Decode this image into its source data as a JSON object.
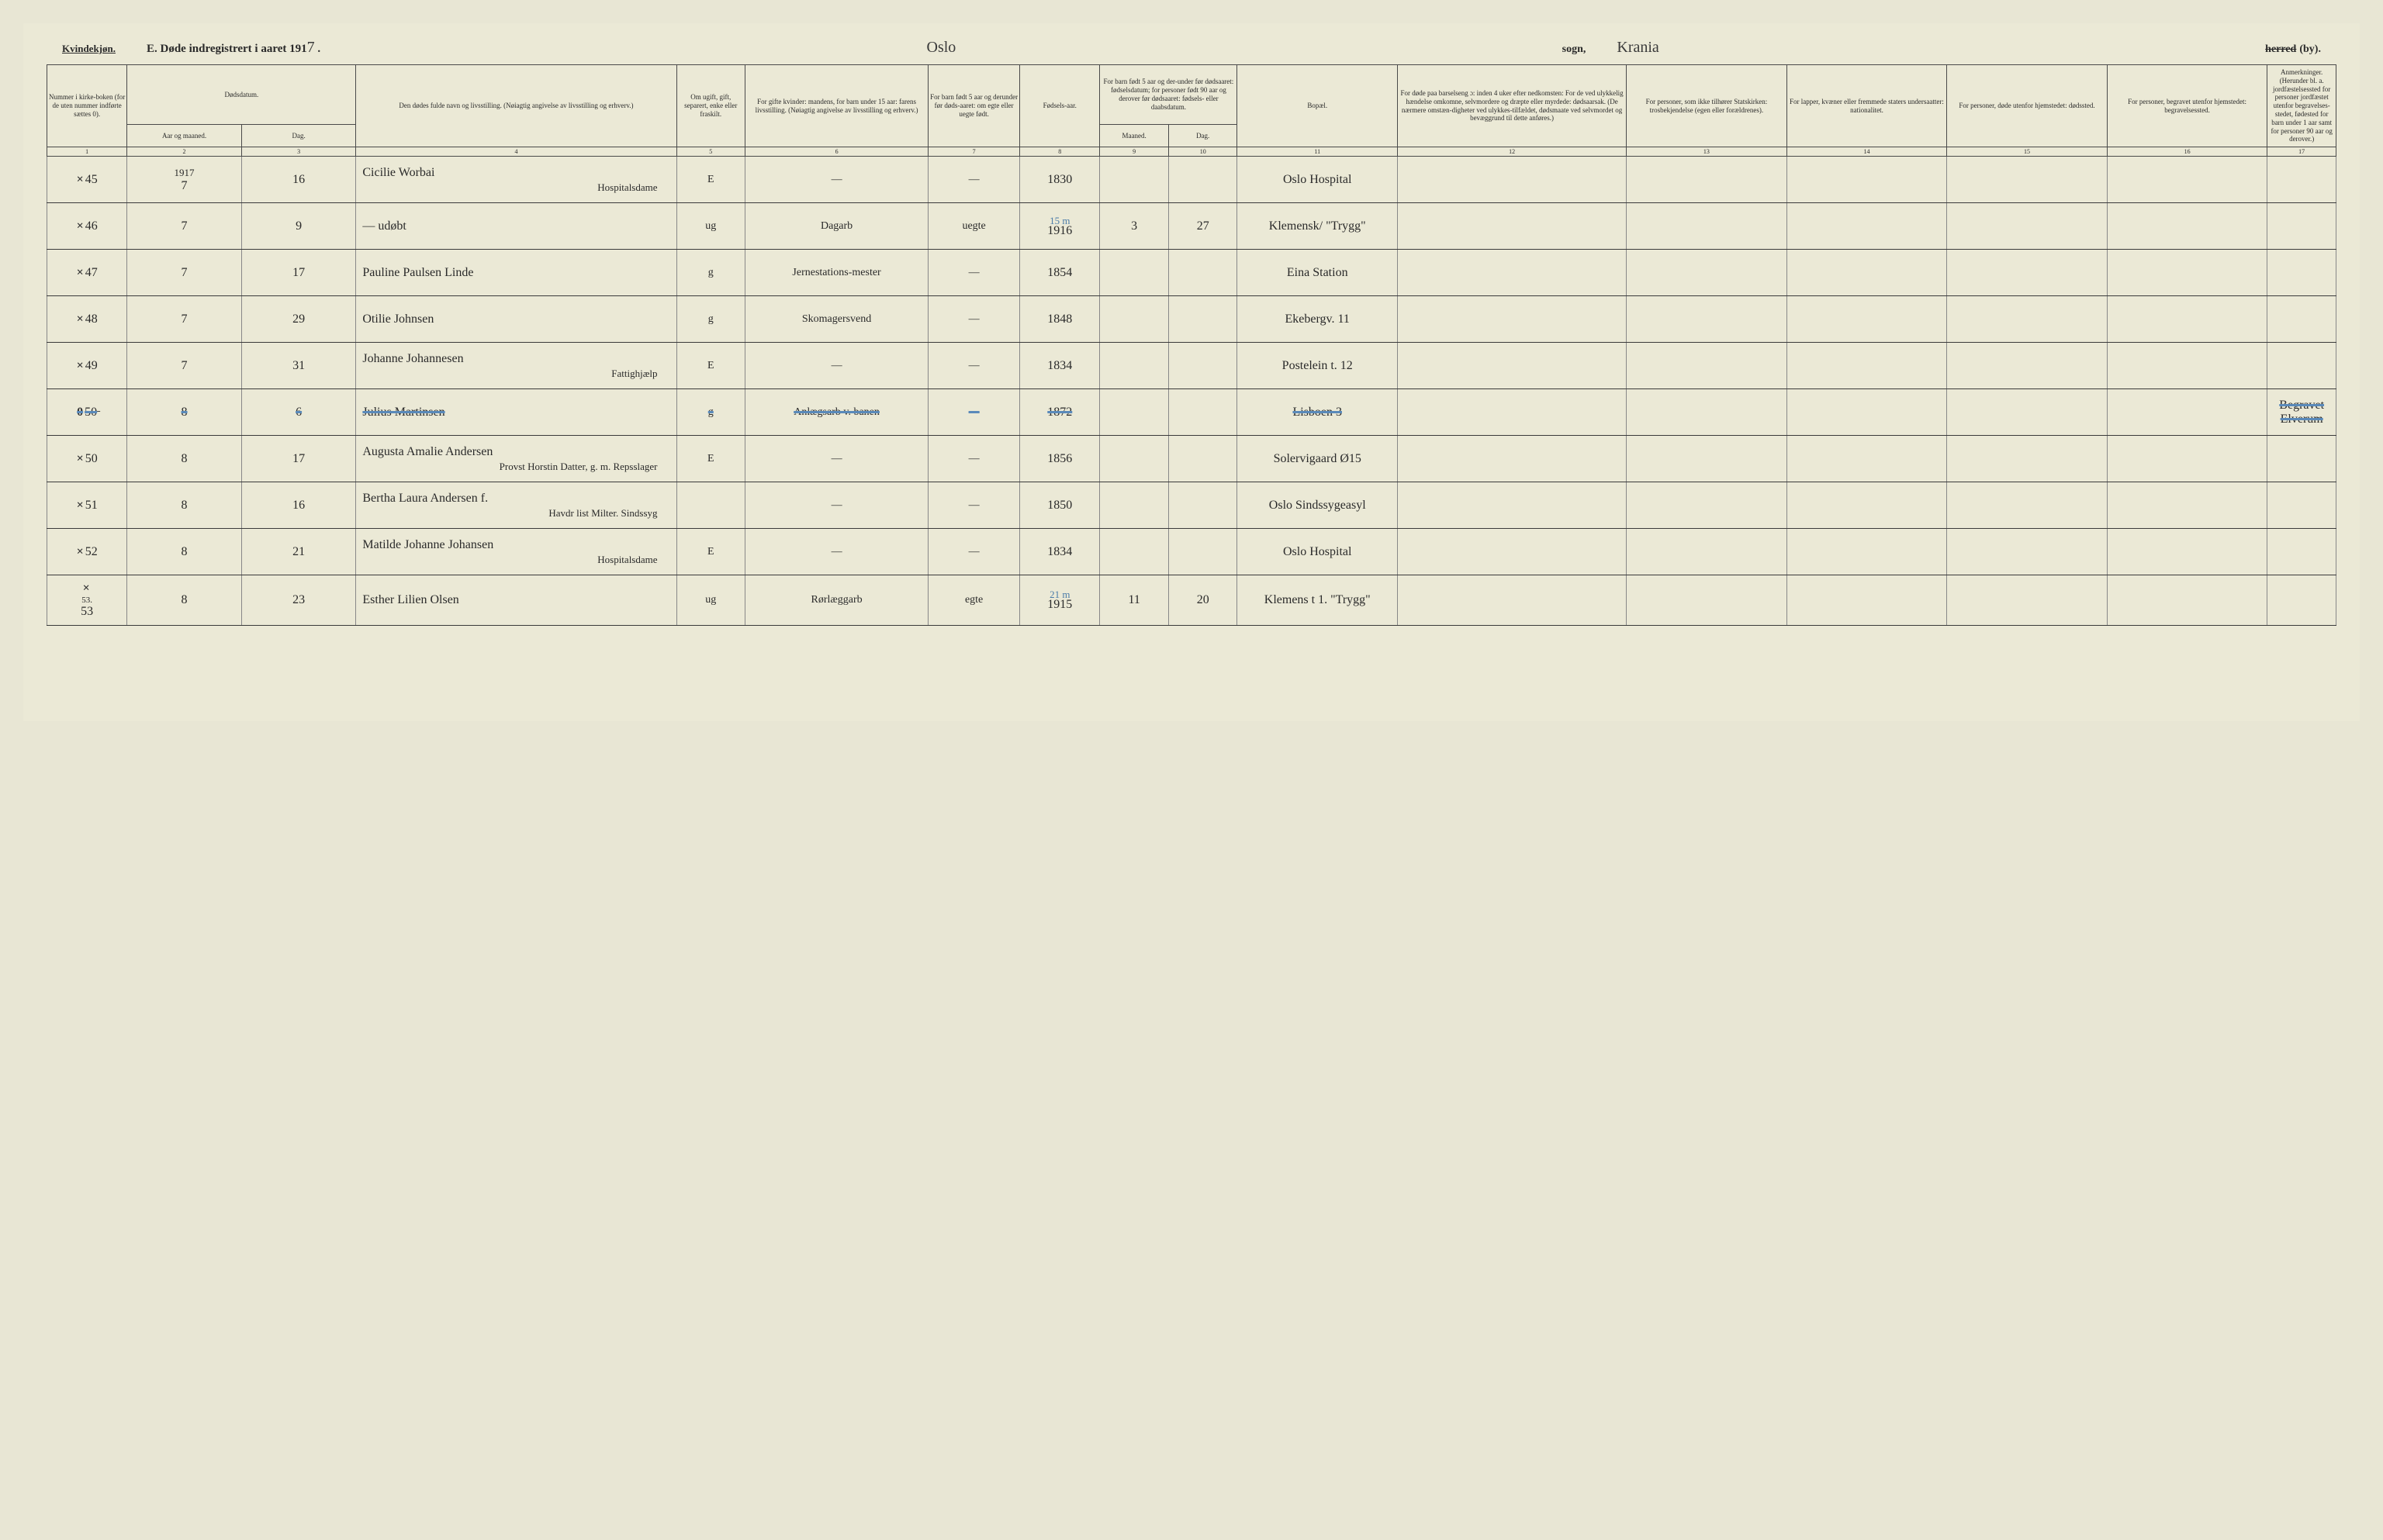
{
  "header": {
    "gender_label": "Kvindekjøn.",
    "title": "E.  Døde indregistrert i aaret 191",
    "year_suffix": "7",
    "parish": "Oslo",
    "sogn_label": "sogn,",
    "district": "Krania",
    "herred_label_struck": "herred",
    "herred_label_by": "(by)."
  },
  "column_headers": {
    "c1": "Nummer i kirke-boken (for de uten nummer indførte sættes 0).",
    "c2_top": "Dødsdatum.",
    "c2a": "Aar og maaned.",
    "c2b": "Dag.",
    "c4": "Den dødes fulde navn og livsstilling. (Nøiagtig angivelse av livsstilling og erhverv.)",
    "c5": "Om ugift, gift, separert, enke eller fraskilt.",
    "c6": "For gifte kvinder: mandens, for barn under 15 aar: farens livsstilling. (Nøiagtig angivelse av livsstilling og erhverv.)",
    "c7": "For barn født 5 aar og derunder før døds-aaret: om egte eller uegte født.",
    "c8": "Fødsels-aar.",
    "c9_top": "For barn født 5 aar og der-under før dødsaaret: fødselsdatum; for personer født 90 aar og derover før dødsaaret: fødsels- eller daabsdatum.",
    "c9a": "Maaned.",
    "c9b": "Dag.",
    "c11": "Bopæl.",
    "c12": "For døde paa barselseng ɔ: inden 4 uker efter nedkomsten: For de ved ulykkelig hændelse omkomne, selvmordere og dræpte eller myrdede: dødsaarsak. (De nærmere omstæn-digheter ved ulykkes-tilfældet, dødsmaate ved selvmordet og bevæggrund til dette anføres.)",
    "c13": "For personer, som ikke tilhører Statskirken: trosbekjendelse (egen eller forældrenes).",
    "c14": "For lapper, kvæner eller fremmede staters undersaatter: nationalitet.",
    "c15": "For personer, døde utenfor hjemstedet: dødssted.",
    "c16": "For personer, begravet utenfor hjemstedet: begravelsessted.",
    "c17": "Anmerkninger. (Herunder bl. a. jordfæstelsessted for personer jordfæstet utenfor begravelses-stedet, fødested for barn under 1 aar samt for personer 90 aar og derover.)"
  },
  "col_numbers": [
    "1",
    "2",
    "3",
    "4",
    "5",
    "6",
    "7",
    "8",
    "9",
    "10",
    "11",
    "12",
    "13",
    "14",
    "15",
    "16",
    "17"
  ],
  "rows": [
    {
      "num": "45",
      "x": "×",
      "year_top": "1917",
      "month": "7",
      "day": "16",
      "name": "Cicilie Worbai",
      "name_sub": "Hospitalsdame",
      "status": "E",
      "mandens": "—",
      "egte": "—",
      "faar": "1830",
      "fmaaned": "",
      "fdag": "",
      "bopael": "Oslo Hospital",
      "cause": "",
      "trosbe": "",
      "nation": "",
      "dodsted": "",
      "begrav": "",
      "anm": ""
    },
    {
      "num": "46",
      "x": "×",
      "month": "7",
      "day": "9",
      "name": "— udøbt",
      "name_sub": "",
      "status": "ug",
      "mandens": "Dagarb",
      "egte": "uegte",
      "faar": "1916",
      "blue_note": "15 m",
      "fmaaned": "3",
      "fdag": "27",
      "bopael": "Klemensk/ \"Trygg\"",
      "cause": "",
      "trosbe": "",
      "nation": "",
      "dodsted": "",
      "begrav": "",
      "anm": ""
    },
    {
      "num": "47",
      "x": "×",
      "month": "7",
      "day": "17",
      "name": "Pauline Paulsen Linde",
      "name_sub": "",
      "status": "g",
      "mandens": "Jernestations-mester",
      "egte": "—",
      "faar": "1854",
      "fmaaned": "",
      "fdag": "",
      "bopael": "Eina Station",
      "cause": "",
      "trosbe": "",
      "nation": "",
      "dodsted": "",
      "begrav": "",
      "anm": ""
    },
    {
      "num": "48",
      "x": "×",
      "month": "7",
      "day": "29",
      "name": "Otilie Johnsen",
      "name_sub": "",
      "status": "g",
      "mandens": "Skomagersvend",
      "egte": "—",
      "faar": "1848",
      "fmaaned": "",
      "fdag": "",
      "bopael": "Ekebergv. 11",
      "cause": "",
      "trosbe": "",
      "nation": "",
      "dodsted": "",
      "begrav": "",
      "anm": ""
    },
    {
      "num": "49",
      "x": "×",
      "month": "7",
      "day": "31",
      "name": "Johanne Johannesen",
      "name_sub": "Fattighjælp",
      "status": "E",
      "mandens": "—",
      "egte": "—",
      "faar": "1834",
      "fmaaned": "",
      "fdag": "",
      "bopael": "Postelein t. 12",
      "cause": "",
      "trosbe": "",
      "nation": "",
      "dodsted": "",
      "begrav": "",
      "anm": ""
    },
    {
      "num": "50̶",
      "x": "0",
      "month": "8",
      "day": "6",
      "struck": true,
      "name": "Julius Martinsen",
      "name_sub": "",
      "status": "g",
      "mandens": "Anlægsarb v. banen",
      "egte": "—",
      "faar": "1872",
      "fmaaned": "",
      "fdag": "",
      "bopael": "Lisboen 3",
      "cause": "",
      "trosbe": "",
      "nation": "",
      "dodsted": "",
      "begrav": "",
      "anm": "Begravet Elverum"
    },
    {
      "num": "50",
      "x": "×",
      "month": "8",
      "day": "17",
      "name": "Augusta Amalie Andersen",
      "name_sub": "Provst Horstin Datter, g. m. Repsslager",
      "status": "E",
      "mandens": "—",
      "egte": "—",
      "faar": "1856",
      "fmaaned": "",
      "fdag": "",
      "bopael": "Solervigaard Ø15",
      "cause": "",
      "trosbe": "",
      "nation": "",
      "dodsted": "",
      "begrav": "",
      "anm": ""
    },
    {
      "num": "51",
      "x": "×",
      "month": "8",
      "day": "16",
      "name": "Bertha Laura Andersen f.",
      "name_sub": "Havdr list Milter. Sindssyg",
      "status": "",
      "mandens": "—",
      "egte": "—",
      "faar": "1850",
      "fmaaned": "",
      "fdag": "",
      "bopael": "Oslo Sindssygeasyl",
      "cause": "",
      "trosbe": "",
      "nation": "",
      "dodsted": "",
      "begrav": "",
      "anm": ""
    },
    {
      "num": "52",
      "x": "×",
      "month": "8",
      "day": "21",
      "name": "Matilde Johanne Johansen",
      "name_sub": "Hospitalsdame",
      "status": "E",
      "mandens": "—",
      "egte": "—",
      "faar": "1834",
      "fmaaned": "",
      "fdag": "",
      "bopael": "Oslo Hospital",
      "cause": "",
      "trosbe": "",
      "nation": "",
      "dodsted": "",
      "begrav": "",
      "anm": ""
    },
    {
      "num": "53",
      "x": "×",
      "num_top": "53.",
      "month": "8",
      "day": "23",
      "name": "Esther Lilien Olsen",
      "name_sub": "",
      "status": "ug",
      "mandens": "Rørlæggarb",
      "egte": "egte",
      "faar": "1915",
      "blue_note": "21 m",
      "fmaaned": "11",
      "fdag": "20",
      "bopael": "Klemens t 1. \"Trygg\"",
      "cause": "",
      "trosbe": "",
      "nation": "",
      "dodsted": "",
      "begrav": "",
      "anm": ""
    }
  ]
}
